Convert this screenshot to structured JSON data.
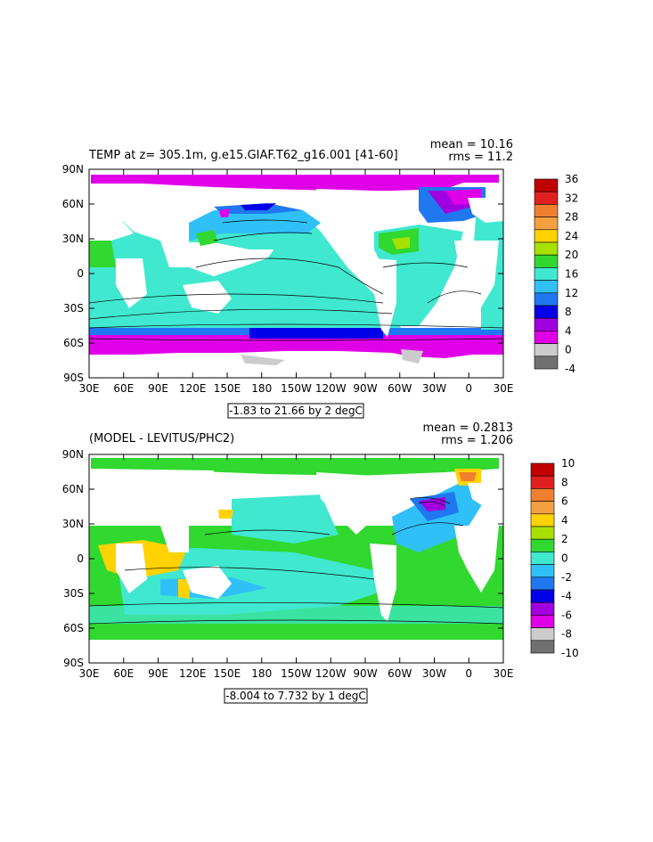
{
  "chart_data": [
    {
      "type": "heatmap",
      "title": "TEMP at z= 305.1m, g.e15.GIAF.T62_g16.001 [41-60]",
      "stats": {
        "mean": "mean = 10.16",
        "rms": "rms = 11.2"
      },
      "contour_info": "-1.83 to 21.66 by 2 degC",
      "x_ticks": [
        "30E",
        "60E",
        "90E",
        "120E",
        "150E",
        "180",
        "150W",
        "120W",
        "90W",
        "60W",
        "30W",
        "0",
        "30E"
      ],
      "y_ticks": [
        "90N",
        "60N",
        "30N",
        "0",
        "30S",
        "60S",
        "90S"
      ],
      "colorbar": {
        "labels": [
          "36",
          "32",
          "28",
          "24",
          "20",
          "16",
          "12",
          "8",
          "4",
          "0",
          "-4"
        ],
        "colors": [
          "#c00000",
          "#e02020",
          "#f08030",
          "#f4a040",
          "#ffd200",
          "#a8e000",
          "#30d830",
          "#40e8d0",
          "#30c0f8",
          "#1f78f0",
          "#0000e8",
          "#a000e0",
          "#e000e8",
          "#cccccc",
          "#707070"
        ]
      }
    },
    {
      "type": "heatmap",
      "title": "(MODEL - LEVITUS/PHC2)",
      "stats": {
        "mean": "mean = 0.2813",
        "rms": "rms = 1.206"
      },
      "contour_info": "-8.004 to 7.732 by 1 degC",
      "x_ticks": [
        "30E",
        "60E",
        "90E",
        "120E",
        "150E",
        "180",
        "150W",
        "120W",
        "90W",
        "60W",
        "30W",
        "0",
        "30E"
      ],
      "y_ticks": [
        "90N",
        "60N",
        "30N",
        "0",
        "30S",
        "60S",
        "90S"
      ],
      "colorbar": {
        "labels": [
          "10",
          "8",
          "6",
          "4",
          "2",
          "0",
          "-2",
          "-4",
          "-6",
          "-8",
          "-10"
        ],
        "colors": [
          "#c00000",
          "#e02020",
          "#f08030",
          "#f4a040",
          "#ffd200",
          "#a8e000",
          "#30d830",
          "#40e8d0",
          "#30c0f8",
          "#1f78f0",
          "#0000e8",
          "#a000e0",
          "#e000e8",
          "#cccccc",
          "#707070"
        ]
      }
    }
  ]
}
